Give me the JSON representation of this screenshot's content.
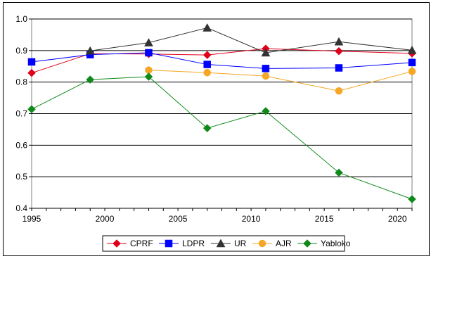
{
  "chart_data": {
    "type": "line",
    "title": "",
    "xlabel": "",
    "ylabel": "",
    "xlim": [
      1995,
      2021
    ],
    "ylim": [
      0.4,
      1.0
    ],
    "x_ticks": [
      1995,
      2000,
      2005,
      2010,
      2015,
      2020
    ],
    "y_ticks": [
      0.4,
      0.5,
      0.6,
      0.7,
      0.8,
      0.9,
      1.0
    ],
    "y_tick_labels": [
      "0.4",
      "0.5",
      "0.6",
      "0.7",
      "0.8",
      "0.9",
      "1.0"
    ],
    "grid": "horizontal",
    "legend_position": "bottom",
    "series": [
      {
        "name": "CPRF",
        "color": "#e0001a",
        "marker": "diamond",
        "x": [
          1995,
          1999,
          2003,
          2007,
          2011,
          2016,
          2021
        ],
        "y": [
          0.829,
          0.89,
          0.889,
          0.886,
          0.906,
          0.898,
          0.891
        ]
      },
      {
        "name": "LDPR",
        "color": "#0000ff",
        "marker": "square",
        "x": [
          1995,
          1999,
          2003,
          2007,
          2011,
          2016,
          2021
        ],
        "y": [
          0.864,
          0.887,
          0.893,
          0.856,
          0.843,
          0.845,
          0.862
        ]
      },
      {
        "name": "UR",
        "color": "#333333",
        "marker": "triangle",
        "x": [
          1999,
          2003,
          2007,
          2011,
          2016,
          2021
        ],
        "y": [
          0.899,
          0.925,
          0.972,
          0.893,
          0.928,
          0.901
        ]
      },
      {
        "name": "AJR",
        "color": "#f5a623",
        "marker": "circle",
        "x": [
          2003,
          2007,
          2011,
          2016,
          2021
        ],
        "y": [
          0.838,
          0.83,
          0.819,
          0.772,
          0.834
        ]
      },
      {
        "name": "Yabloko",
        "color": "#0f8a1a",
        "marker": "diamond",
        "x": [
          1995,
          1999,
          2003,
          2007,
          2011,
          2016,
          2021
        ],
        "y": [
          0.714,
          0.808,
          0.817,
          0.654,
          0.708,
          0.513,
          0.429
        ]
      }
    ]
  }
}
